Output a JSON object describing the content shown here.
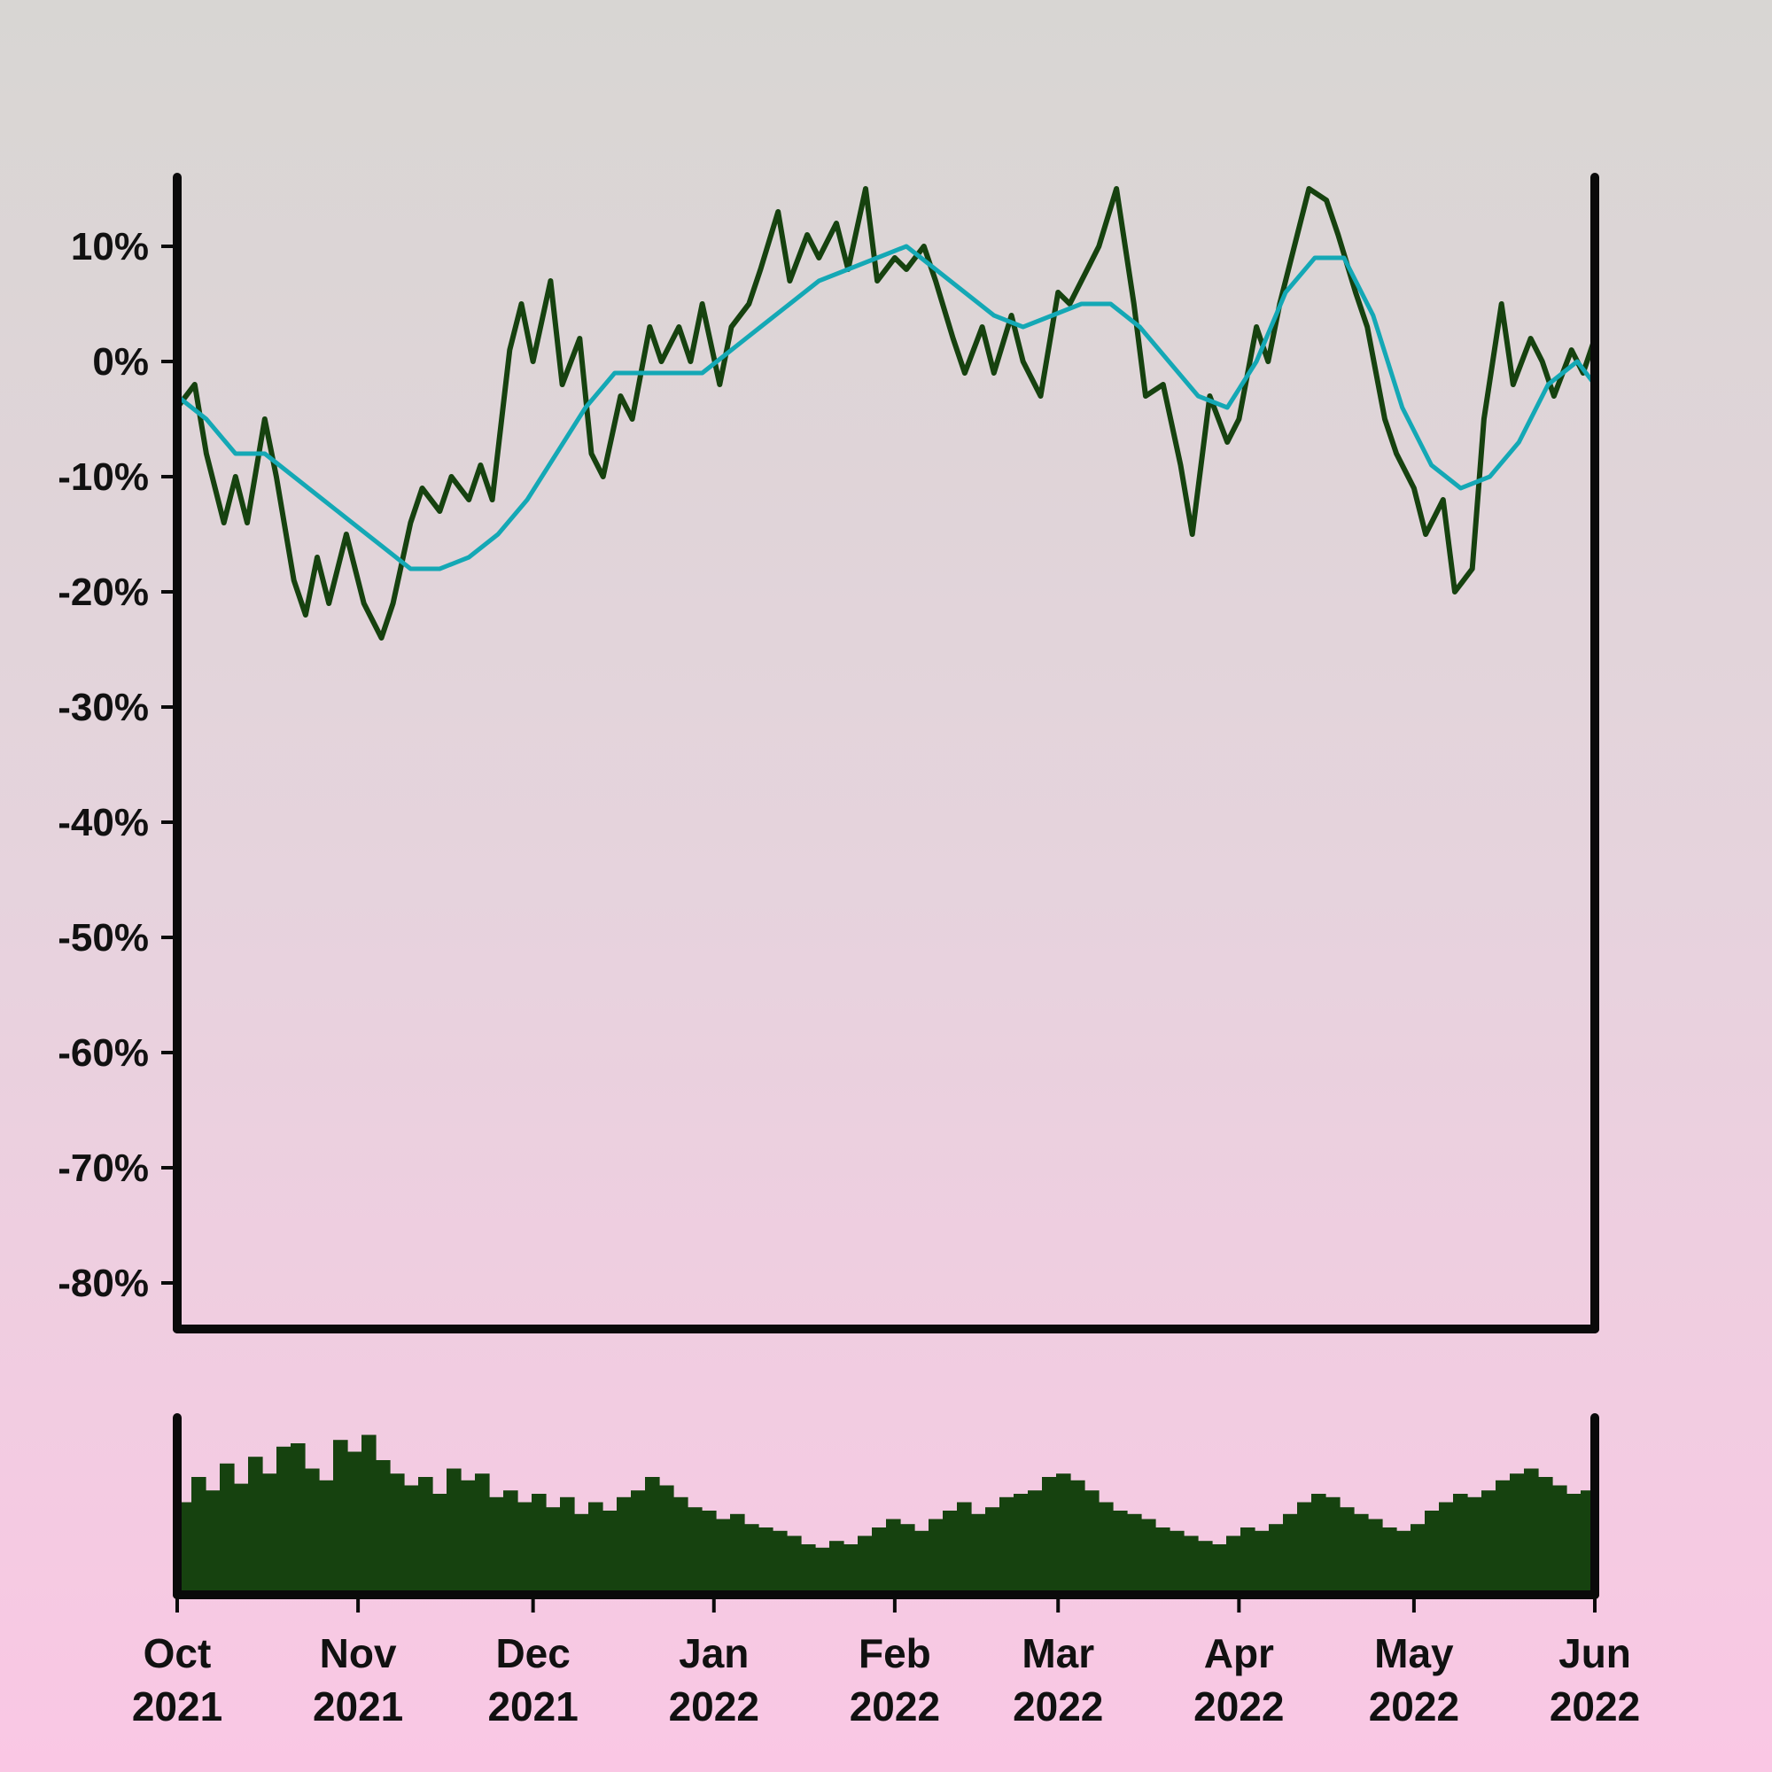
{
  "chart_data": {
    "type": "line",
    "x_axis": {
      "type": "date",
      "range": [
        "2021-10-01",
        "2022-06-01"
      ],
      "ticks": [
        {
          "month": "Oct",
          "year": "2021",
          "date": "2021-10-01"
        },
        {
          "month": "Nov",
          "year": "2021",
          "date": "2021-11-01"
        },
        {
          "month": "Dec",
          "year": "2021",
          "date": "2021-12-01"
        },
        {
          "month": "Jan",
          "year": "2022",
          "date": "2022-01-01"
        },
        {
          "month": "Feb",
          "year": "2022",
          "date": "2022-02-01"
        },
        {
          "month": "Mar",
          "year": "2022",
          "date": "2022-03-01"
        },
        {
          "month": "Apr",
          "year": "2022",
          "date": "2022-04-01"
        },
        {
          "month": "May",
          "year": "2022",
          "date": "2022-05-01"
        },
        {
          "month": "Jun",
          "year": "2022",
          "date": "2022-06-01"
        }
      ]
    },
    "y_axis": {
      "unit": "%",
      "range": [
        -84,
        16
      ],
      "ticks": [
        "10%",
        "0%",
        "-10%",
        "-20%",
        "-30%",
        "-40%",
        "-50%",
        "-60%",
        "-70%",
        "-80%"
      ],
      "tick_values": [
        10,
        0,
        -10,
        -20,
        -30,
        -40,
        -50,
        -60,
        -70,
        -80
      ]
    },
    "grid": false,
    "legend": "none",
    "colors": {
      "series": "#16420f",
      "moving_average": "#14a8b5",
      "axes": "#0a0a0a"
    },
    "series": [
      {
        "values": [
          {
            "x": "2021-10-01",
            "y": -4
          },
          {
            "x": "2021-10-04",
            "y": -2
          },
          {
            "x": "2021-10-06",
            "y": -8
          },
          {
            "x": "2021-10-09",
            "y": -14
          },
          {
            "x": "2021-10-11",
            "y": -10
          },
          {
            "x": "2021-10-13",
            "y": -14
          },
          {
            "x": "2021-10-16",
            "y": -5
          },
          {
            "x": "2021-10-18",
            "y": -10
          },
          {
            "x": "2021-10-21",
            "y": -19
          },
          {
            "x": "2021-10-23",
            "y": -22
          },
          {
            "x": "2021-10-25",
            "y": -17
          },
          {
            "x": "2021-10-27",
            "y": -21
          },
          {
            "x": "2021-10-30",
            "y": -15
          },
          {
            "x": "2021-11-02",
            "y": -21
          },
          {
            "x": "2021-11-05",
            "y": -24
          },
          {
            "x": "2021-11-07",
            "y": -21
          },
          {
            "x": "2021-11-10",
            "y": -14
          },
          {
            "x": "2021-11-12",
            "y": -11
          },
          {
            "x": "2021-11-15",
            "y": -13
          },
          {
            "x": "2021-11-17",
            "y": -10
          },
          {
            "x": "2021-11-20",
            "y": -12
          },
          {
            "x": "2021-11-22",
            "y": -9
          },
          {
            "x": "2021-11-24",
            "y": -12
          },
          {
            "x": "2021-11-27",
            "y": 1
          },
          {
            "x": "2021-11-29",
            "y": 5
          },
          {
            "x": "2021-12-01",
            "y": 0
          },
          {
            "x": "2021-12-04",
            "y": 7
          },
          {
            "x": "2021-12-06",
            "y": -2
          },
          {
            "x": "2021-12-09",
            "y": 2
          },
          {
            "x": "2021-12-11",
            "y": -8
          },
          {
            "x": "2021-12-13",
            "y": -10
          },
          {
            "x": "2021-12-16",
            "y": -3
          },
          {
            "x": "2021-12-18",
            "y": -5
          },
          {
            "x": "2021-12-21",
            "y": 3
          },
          {
            "x": "2021-12-23",
            "y": 0
          },
          {
            "x": "2021-12-26",
            "y": 3
          },
          {
            "x": "2021-12-28",
            "y": 0
          },
          {
            "x": "2021-12-30",
            "y": 5
          },
          {
            "x": "2022-01-02",
            "y": -2
          },
          {
            "x": "2022-01-04",
            "y": 3
          },
          {
            "x": "2022-01-07",
            "y": 5
          },
          {
            "x": "2022-01-09",
            "y": 8
          },
          {
            "x": "2022-01-12",
            "y": 13
          },
          {
            "x": "2022-01-14",
            "y": 7
          },
          {
            "x": "2022-01-17",
            "y": 11
          },
          {
            "x": "2022-01-19",
            "y": 9
          },
          {
            "x": "2022-01-22",
            "y": 12
          },
          {
            "x": "2022-01-24",
            "y": 8
          },
          {
            "x": "2022-01-27",
            "y": 15
          },
          {
            "x": "2022-01-29",
            "y": 7
          },
          {
            "x": "2022-02-01",
            "y": 9
          },
          {
            "x": "2022-02-03",
            "y": 8
          },
          {
            "x": "2022-02-06",
            "y": 10
          },
          {
            "x": "2022-02-08",
            "y": 7
          },
          {
            "x": "2022-02-11",
            "y": 2
          },
          {
            "x": "2022-02-13",
            "y": -1
          },
          {
            "x": "2022-02-16",
            "y": 3
          },
          {
            "x": "2022-02-18",
            "y": -1
          },
          {
            "x": "2022-02-21",
            "y": 4
          },
          {
            "x": "2022-02-23",
            "y": 0
          },
          {
            "x": "2022-02-26",
            "y": -3
          },
          {
            "x": "2022-03-01",
            "y": 6
          },
          {
            "x": "2022-03-03",
            "y": 5
          },
          {
            "x": "2022-03-06",
            "y": 8
          },
          {
            "x": "2022-03-08",
            "y": 10
          },
          {
            "x": "2022-03-11",
            "y": 15
          },
          {
            "x": "2022-03-14",
            "y": 5
          },
          {
            "x": "2022-03-16",
            "y": -3
          },
          {
            "x": "2022-03-19",
            "y": -2
          },
          {
            "x": "2022-03-22",
            "y": -9
          },
          {
            "x": "2022-03-24",
            "y": -15
          },
          {
            "x": "2022-03-27",
            "y": -3
          },
          {
            "x": "2022-03-30",
            "y": -7
          },
          {
            "x": "2022-04-01",
            "y": -5
          },
          {
            "x": "2022-04-04",
            "y": 3
          },
          {
            "x": "2022-04-06",
            "y": 0
          },
          {
            "x": "2022-04-08",
            "y": 5
          },
          {
            "x": "2022-04-11",
            "y": 11
          },
          {
            "x": "2022-04-13",
            "y": 15
          },
          {
            "x": "2022-04-16",
            "y": 14
          },
          {
            "x": "2022-04-18",
            "y": 11
          },
          {
            "x": "2022-04-21",
            "y": 6
          },
          {
            "x": "2022-04-23",
            "y": 3
          },
          {
            "x": "2022-04-26",
            "y": -5
          },
          {
            "x": "2022-04-28",
            "y": -8
          },
          {
            "x": "2022-05-01",
            "y": -11
          },
          {
            "x": "2022-05-03",
            "y": -15
          },
          {
            "x": "2022-05-06",
            "y": -12
          },
          {
            "x": "2022-05-08",
            "y": -20
          },
          {
            "x": "2022-05-11",
            "y": -18
          },
          {
            "x": "2022-05-13",
            "y": -5
          },
          {
            "x": "2022-05-16",
            "y": 5
          },
          {
            "x": "2022-05-18",
            "y": -2
          },
          {
            "x": "2022-05-21",
            "y": 2
          },
          {
            "x": "2022-05-23",
            "y": 0
          },
          {
            "x": "2022-05-25",
            "y": -3
          },
          {
            "x": "2022-05-28",
            "y": 1
          },
          {
            "x": "2022-05-30",
            "y": -1
          },
          {
            "x": "2022-06-01",
            "y": 2
          }
        ]
      },
      {
        "values": [
          {
            "x": "2021-10-01",
            "y": -3
          },
          {
            "x": "2021-10-06",
            "y": -5
          },
          {
            "x": "2021-10-11",
            "y": -8
          },
          {
            "x": "2021-10-16",
            "y": -8
          },
          {
            "x": "2021-10-21",
            "y": -10
          },
          {
            "x": "2021-10-26",
            "y": -12
          },
          {
            "x": "2021-10-31",
            "y": -14
          },
          {
            "x": "2021-11-05",
            "y": -16
          },
          {
            "x": "2021-11-10",
            "y": -18
          },
          {
            "x": "2021-11-15",
            "y": -18
          },
          {
            "x": "2021-11-20",
            "y": -17
          },
          {
            "x": "2021-11-25",
            "y": -15
          },
          {
            "x": "2021-11-30",
            "y": -12
          },
          {
            "x": "2021-12-05",
            "y": -8
          },
          {
            "x": "2021-12-10",
            "y": -4
          },
          {
            "x": "2021-12-15",
            "y": -1
          },
          {
            "x": "2021-12-20",
            "y": -1
          },
          {
            "x": "2021-12-25",
            "y": -1
          },
          {
            "x": "2021-12-30",
            "y": -1
          },
          {
            "x": "2022-01-04",
            "y": 1
          },
          {
            "x": "2022-01-09",
            "y": 3
          },
          {
            "x": "2022-01-14",
            "y": 5
          },
          {
            "x": "2022-01-19",
            "y": 7
          },
          {
            "x": "2022-01-24",
            "y": 8
          },
          {
            "x": "2022-01-29",
            "y": 9
          },
          {
            "x": "2022-02-03",
            "y": 10
          },
          {
            "x": "2022-02-08",
            "y": 8
          },
          {
            "x": "2022-02-13",
            "y": 6
          },
          {
            "x": "2022-02-18",
            "y": 4
          },
          {
            "x": "2022-02-23",
            "y": 3
          },
          {
            "x": "2022-02-28",
            "y": 4
          },
          {
            "x": "2022-03-05",
            "y": 5
          },
          {
            "x": "2022-03-10",
            "y": 5
          },
          {
            "x": "2022-03-15",
            "y": 3
          },
          {
            "x": "2022-03-20",
            "y": 0
          },
          {
            "x": "2022-03-25",
            "y": -3
          },
          {
            "x": "2022-03-30",
            "y": -4
          },
          {
            "x": "2022-04-04",
            "y": 0
          },
          {
            "x": "2022-04-09",
            "y": 6
          },
          {
            "x": "2022-04-14",
            "y": 9
          },
          {
            "x": "2022-04-19",
            "y": 9
          },
          {
            "x": "2022-04-24",
            "y": 4
          },
          {
            "x": "2022-04-29",
            "y": -4
          },
          {
            "x": "2022-05-04",
            "y": -9
          },
          {
            "x": "2022-05-09",
            "y": -11
          },
          {
            "x": "2022-05-14",
            "y": -10
          },
          {
            "x": "2022-05-19",
            "y": -7
          },
          {
            "x": "2022-05-24",
            "y": -2
          },
          {
            "x": "2022-05-29",
            "y": 0
          },
          {
            "x": "2022-06-01",
            "y": -2
          }
        ]
      }
    ],
    "volume": {
      "type": "bar",
      "values": [
        55,
        70,
        62,
        78,
        66,
        82,
        72,
        88,
        90,
        75,
        68,
        92,
        85,
        95,
        80,
        72,
        65,
        70,
        60,
        75,
        68,
        72,
        58,
        62,
        55,
        60,
        52,
        58,
        48,
        55,
        50,
        58,
        62,
        70,
        65,
        58,
        52,
        50,
        45,
        48,
        42,
        40,
        38,
        35,
        30,
        28,
        32,
        30,
        35,
        40,
        45,
        42,
        38,
        45,
        50,
        55,
        48,
        52,
        58,
        60,
        62,
        70,
        72,
        68,
        62,
        55,
        50,
        48,
        45,
        40,
        38,
        35,
        32,
        30,
        35,
        40,
        38,
        42,
        48,
        55,
        60,
        58,
        52,
        48,
        45,
        40,
        38,
        42,
        50,
        55,
        60,
        58,
        62,
        68,
        72,
        75,
        70,
        65,
        60,
        62
      ]
    }
  }
}
